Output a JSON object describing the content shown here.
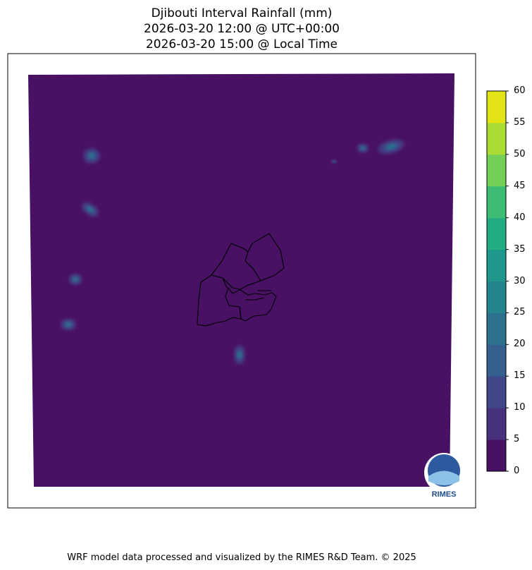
{
  "title": {
    "line1": "Djibouti Interval Rainfall (mm)",
    "line2": "2026-03-20 12:00 @ UTC+00:00",
    "line3": "2026-03-20 15:00 @ Local Time"
  },
  "colorbar": {
    "levels": [
      0,
      5,
      10,
      15,
      20,
      25,
      30,
      35,
      40,
      45,
      50,
      55,
      60
    ],
    "tick_labels": [
      "0",
      "5",
      "10",
      "15",
      "20",
      "25",
      "30",
      "35",
      "40",
      "45",
      "50",
      "55",
      "60"
    ],
    "colors": [
      "#481163",
      "#47307c",
      "#3f4789",
      "#355f8d",
      "#2c728e",
      "#25858e",
      "#1f988b",
      "#23ab82",
      "#3dbc74",
      "#73d056",
      "#aadc32",
      "#e3e418"
    ]
  },
  "logo": {
    "text": "RIMES"
  },
  "footer": "WRF model data processed and visualized by the RIMES R&D Team. © 2025"
}
